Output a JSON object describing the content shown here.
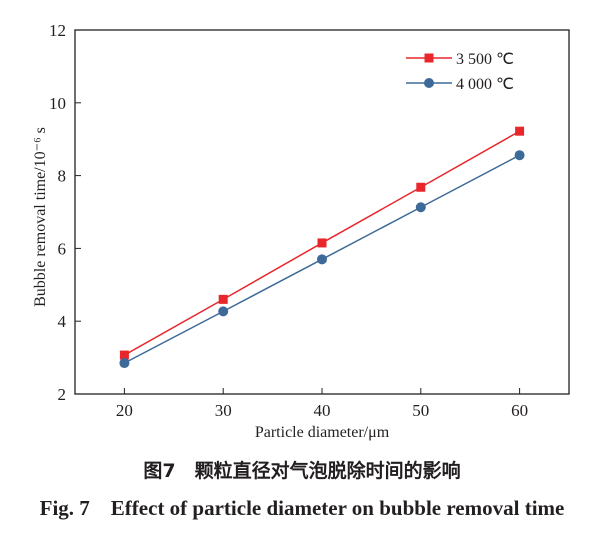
{
  "caption": {
    "cn": "图7　颗粒直径对气泡脱除时间的影响",
    "en": "Fig. 7 Effect of particle diameter on bubble removal time"
  },
  "chart_data": {
    "type": "line",
    "title": "",
    "xlabel": "Particle diameter/μm",
    "ylabel": "Bubble removal time/10⁻⁶ s",
    "x": [
      20,
      30,
      40,
      50,
      60
    ],
    "xlim": [
      15,
      65
    ],
    "ylim": [
      2,
      12
    ],
    "xticks": [
      20,
      30,
      40,
      50,
      60
    ],
    "yticks": [
      2,
      4,
      6,
      8,
      10,
      12
    ],
    "grid": false,
    "legend_position": "top-right",
    "series": [
      {
        "name": "3 500 ℃",
        "color": "#e8262b",
        "marker": "square",
        "values": [
          3.07,
          4.6,
          6.15,
          7.68,
          9.22
        ]
      },
      {
        "name": "4 000 ℃",
        "color": "#3d6a98",
        "marker": "circle",
        "values": [
          2.85,
          4.27,
          5.7,
          7.13,
          8.56
        ]
      }
    ]
  }
}
